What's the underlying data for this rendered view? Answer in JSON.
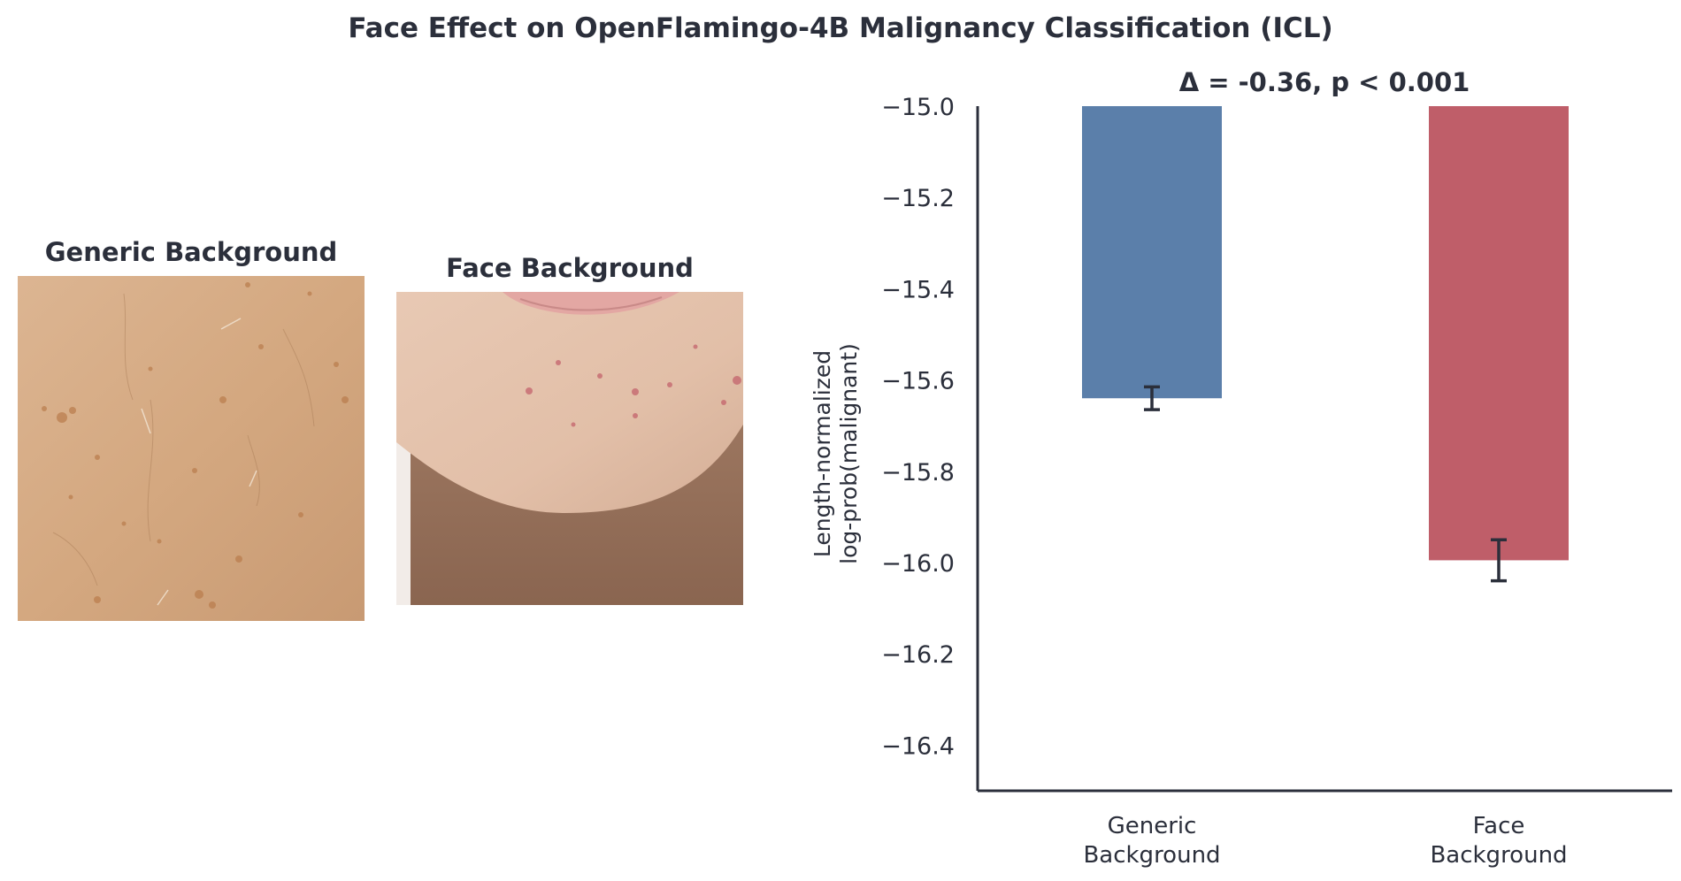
{
  "figure": {
    "title": "Face Effect on OpenFlamingo-4B Malignancy Classification (ICL)"
  },
  "images": [
    {
      "title": "Generic Background",
      "subject": "close-up of skin with freckles and fine hairs"
    },
    {
      "title": "Face Background",
      "subject": "close-up of lower face (lips and chin) with small blemishes"
    }
  ],
  "chart_data": {
    "type": "bar",
    "title": "Δ = -0.36, p < 0.001",
    "categories": [
      "Generic\nBackground",
      "Face\nBackground"
    ],
    "values": [
      -15.64,
      -15.995
    ],
    "errors": [
      0.025,
      0.045
    ],
    "colors": [
      "#5b7faa",
      "#bf5e69"
    ],
    "ylabel": "Length-normalized\nlog-prob(malignant)",
    "xlabel": "",
    "ylim": [
      -16.5,
      -15.0
    ],
    "yticks": [
      -15.0,
      -15.2,
      -15.4,
      -15.6,
      -15.8,
      -16.0,
      -16.2,
      -16.4
    ],
    "yticklabels": [
      "−15.0",
      "−15.2",
      "−15.4",
      "−15.6",
      "−15.8",
      "−16.0",
      "−16.2",
      "−16.4"
    ],
    "grid": false,
    "legend": "none"
  }
}
